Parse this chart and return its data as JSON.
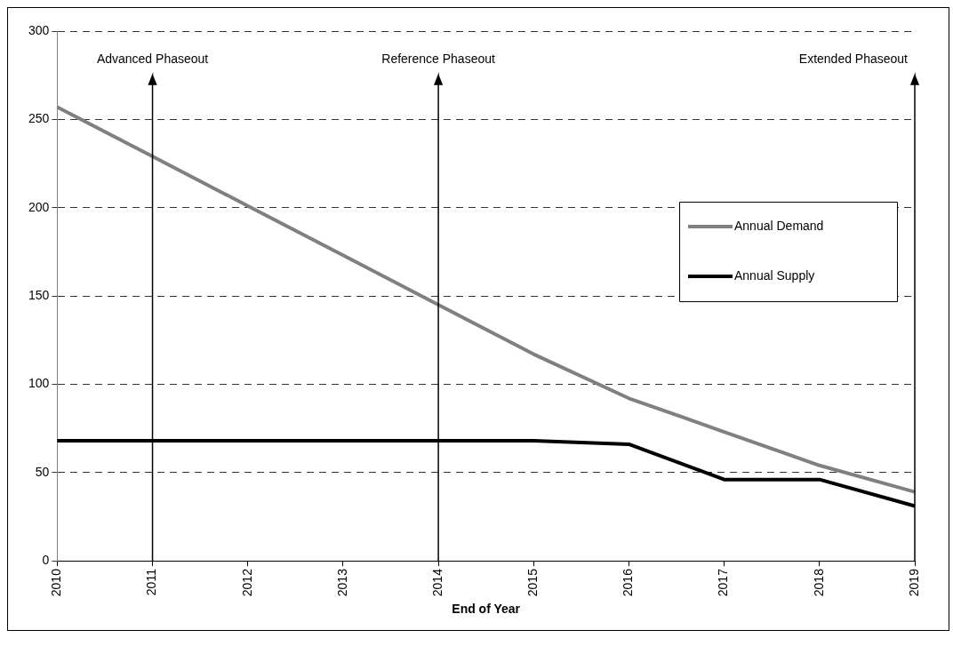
{
  "chart_data": {
    "type": "line",
    "categories": [
      "2010",
      "2011",
      "2012",
      "2013",
      "2014",
      "2015",
      "2016",
      "2017",
      "2018",
      "2019"
    ],
    "series": [
      {
        "name": "Annual Demand",
        "color": "#808080",
        "values": [
          257,
          229,
          201,
          173,
          145,
          117,
          92,
          73,
          54,
          39
        ]
      },
      {
        "name": "Annual Supply",
        "color": "#000000",
        "values": [
          68,
          68,
          68,
          68,
          68,
          68,
          66,
          46,
          46,
          31
        ]
      }
    ],
    "xlabel": "End of Year",
    "ylim": [
      0,
      300
    ],
    "yticks": [
      0,
      50,
      100,
      150,
      200,
      250,
      300
    ],
    "grid": "y",
    "line_style": "solid",
    "legend": "right",
    "ref_lines": [
      {
        "axis": "x",
        "value": "2011",
        "label": "Advanced Phaseout"
      },
      {
        "axis": "x",
        "value": "2014",
        "label": "Reference Phaseout"
      },
      {
        "axis": "x",
        "value": "2019",
        "label": "Extended Phaseout"
      }
    ]
  }
}
